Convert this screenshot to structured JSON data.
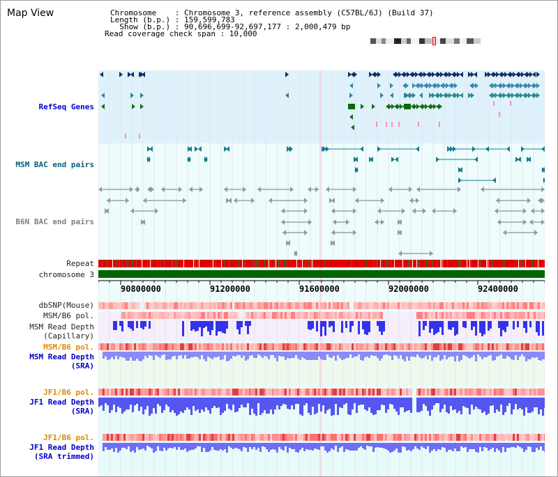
{
  "view_title": "Map View",
  "header": {
    "chromosome_label": "Chromosome    : Chromosome 3, reference assembly (C57BL/6J) (Build 37)",
    "length_label": "Length (b.p.) : 159,599,783",
    "show_label": "  Show (b.p.) : 90,696,699-92,697,177 : 2,000,479 bp",
    "coverage_label": "Read coverage check span : 10,000"
  },
  "track_labels": {
    "refseq": "RefSeq Genes",
    "msm_bac": "MSM BAC end pairs",
    "b6n_bac": "B6N BAC end pairs",
    "repeat": "Repeat",
    "chromosome": "chromosome 3",
    "dbsnp": "dbSNP(Mouse)",
    "msm_b6_pol": "MSM/B6 pol.",
    "msm_depth_cap": "MSM Read Depth\n(Capillary)",
    "msm_b6_pol_2": "MSM/B6 pol.",
    "msm_depth_sra": "MSM Read Depth\n(SRA)",
    "jf1_b6_pol": "JF1/B6 pol.",
    "jf1_depth_sra": "JF1 Read Depth\n(SRA)",
    "jf1_b6_pol_2": "JF1/B6 pol.",
    "jf1_depth_trim": "JF1 Read Depth\n(SRA trimmed)"
  },
  "axis_ticks": [
    "90800000",
    "91200000",
    "91600000",
    "92000000",
    "92400000"
  ],
  "colors": {
    "refseq_bg": "#dff2fb",
    "bac_bg": "#e6fbfb",
    "chromosome_bar": "#006400",
    "repeat_red": "#e00000",
    "snp_pink": "#ffb0b0",
    "depth_blue": "#6666ff",
    "selected_line": "#ff88cc"
  }
}
